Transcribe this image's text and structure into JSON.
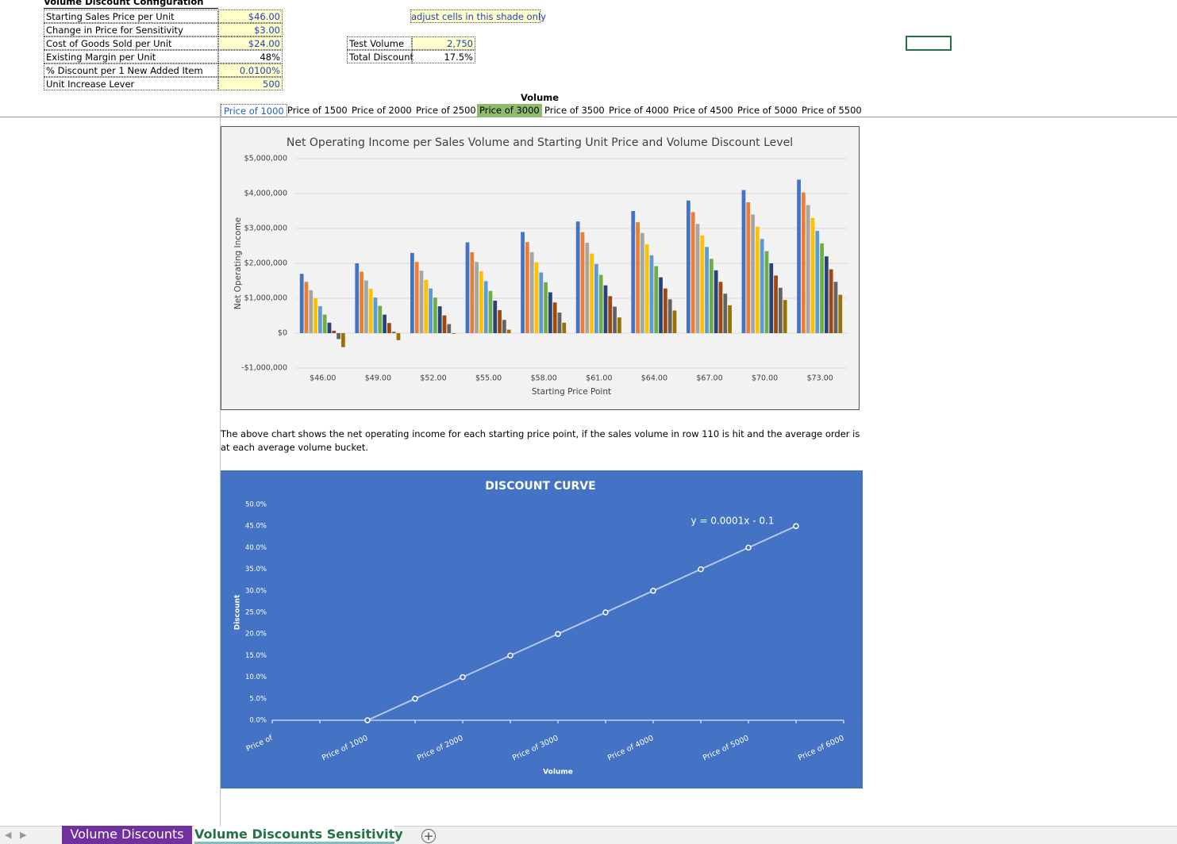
{
  "config": {
    "title": "Volume Discount Configuration",
    "rows": [
      [
        "Starting Sales Price per Unit",
        "$46.00"
      ],
      [
        "Change in Price for Sensitivity",
        "$3.00"
      ],
      [
        "Cost of Goods Sold per Unit",
        "$24.00"
      ],
      [
        "Existing Margin per Unit",
        "48%"
      ],
      [
        "% Discount per 1 New Added Item",
        "0.0100%"
      ],
      [
        "Unit Increase Lever",
        "500"
      ]
    ]
  },
  "hint": "adjust cells in this shade only",
  "test": [
    [
      "Test Volume",
      "2,750"
    ],
    [
      "Total Discount",
      "17.5%"
    ]
  ],
  "volume": {
    "label": "Volume",
    "buttons": [
      "Price of 1000",
      "Price of 1500",
      "Price of 2000",
      "Price of 2500",
      "Price of 3000",
      "Price of 3500",
      "Price of 4000",
      "Price of 4500",
      "Price of 5000",
      "Price of 5500"
    ]
  },
  "chart_data": [
    {
      "type": "bar",
      "title": "Net Operating Income per Sales Volume and Starting Unit Price and Volume Discount Level",
      "x_label": "Starting Price Point",
      "y_label": "Net Operating Income",
      "categories": [
        "$46.00",
        "$49.00",
        "$52.00",
        "$55.00",
        "$58.00",
        "$61.00",
        "$64.00",
        "$67.00",
        "$70.00",
        "$73.00"
      ],
      "series": [
        {
          "color": "#4472c4",
          "values": [
            1700000,
            2000000,
            2300000,
            2600000,
            2900000,
            3200000,
            3500000,
            3800000,
            4100000,
            4400000
          ]
        },
        {
          "color": "#ed7d31",
          "values": [
            1470000,
            1760000,
            2040000,
            2320000,
            2610000,
            2890000,
            3180000,
            3470000,
            3750000,
            4030000
          ]
        },
        {
          "color": "#a5a5a5",
          "values": [
            1230000,
            1510000,
            1790000,
            2040000,
            2320000,
            2590000,
            2870000,
            3130000,
            3400000,
            3670000
          ]
        },
        {
          "color": "#ffc000",
          "values": [
            1000000,
            1270000,
            1530000,
            1770000,
            2030000,
            2280000,
            2550000,
            2800000,
            3050000,
            3300000
          ]
        },
        {
          "color": "#5b9bd5",
          "values": [
            770000,
            1020000,
            1280000,
            1490000,
            1740000,
            1980000,
            2230000,
            2470000,
            2700000,
            2930000
          ]
        },
        {
          "color": "#70ad47",
          "values": [
            530000,
            780000,
            1020000,
            1210000,
            1460000,
            1670000,
            1920000,
            2130000,
            2350000,
            2570000
          ]
        },
        {
          "color": "#264478",
          "values": [
            300000,
            530000,
            770000,
            930000,
            1170000,
            1370000,
            1600000,
            1800000,
            2000000,
            2200000
          ]
        },
        {
          "color": "#9e480e",
          "values": [
            70000,
            290000,
            510000,
            660000,
            880000,
            1060000,
            1280000,
            1470000,
            1650000,
            1830000
          ]
        },
        {
          "color": "#636363",
          "values": [
            -170000,
            40000,
            260000,
            380000,
            590000,
            760000,
            970000,
            1130000,
            1300000,
            1470000
          ]
        },
        {
          "color": "#997300",
          "values": [
            -400000,
            -200000,
            -20000,
            100000,
            300000,
            450000,
            650000,
            800000,
            950000,
            1100000
          ]
        }
      ],
      "ylim": [
        -1000000,
        5000000
      ],
      "yticks": [
        {
          "value": -1000000,
          "label": "-$1,000,000"
        },
        {
          "value": 0,
          "label": "$0"
        },
        {
          "value": 1000000,
          "label": "$1,000,000"
        },
        {
          "value": 2000000,
          "label": "$2,000,000"
        },
        {
          "value": 3000000,
          "label": "$3,000,000"
        },
        {
          "value": 4000000,
          "label": "$4,000,000"
        },
        {
          "value": 5000000,
          "label": "$5,000,000"
        }
      ],
      "grid": true
    },
    {
      "type": "line",
      "title": "DISCOUNT CURVE",
      "x_label": "Volume",
      "y_label": "Discount",
      "annotation": "y = 0.0001x - 0.1",
      "categories": [
        "Price of",
        null,
        "Price of 1000",
        null,
        "Price of 2000",
        null,
        "Price of 3000",
        null,
        "Price of 4000",
        null,
        "Price of 5000",
        null,
        "Price of 6000"
      ],
      "series": [
        {
          "color": "#b4c7e7",
          "values": [
            null,
            null,
            0,
            5,
            10,
            15,
            20,
            25,
            30,
            35,
            40,
            45,
            null
          ]
        }
      ],
      "ylim": [
        0,
        50
      ],
      "yticks": [
        {
          "value": 0,
          "label": "0.0%"
        },
        {
          "value": 5,
          "label": "5.0%"
        },
        {
          "value": 10,
          "label": "10.0%"
        },
        {
          "value": 15,
          "label": "15.0%"
        },
        {
          "value": 20,
          "label": "20.0%"
        },
        {
          "value": 25,
          "label": "25.0%"
        },
        {
          "value": 30,
          "label": "30.0%"
        },
        {
          "value": 35,
          "label": "35.0%"
        },
        {
          "value": 40,
          "label": "40.0%"
        },
        {
          "value": 45,
          "label": "45.0%"
        },
        {
          "value": 50,
          "label": "50.0%"
        }
      ],
      "grid": false
    }
  ],
  "note": "The above chart shows the net operating income for each starting price point, if the sales volume in row 110 is hit and the average order is at each average volume bucket.",
  "tabs": [
    "Volume Discounts",
    "Volume Discounts Sensitivity"
  ]
}
